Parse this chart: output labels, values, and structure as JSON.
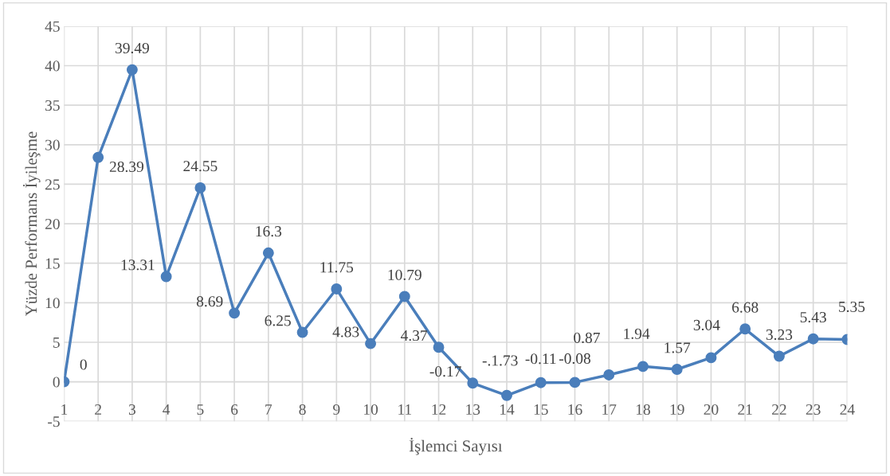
{
  "chart_data": {
    "type": "line",
    "xlabel": "İşlemci Sayısı",
    "ylabel": "Yüzde Performans İyileşme",
    "categories": [
      "1",
      "2",
      "3",
      "4",
      "5",
      "6",
      "7",
      "8",
      "9",
      "10",
      "11",
      "12",
      "13",
      "14",
      "15",
      "16",
      "17",
      "18",
      "19",
      "20",
      "21",
      "22",
      "23",
      "24"
    ],
    "series": [
      {
        "color": "#4a7ebb",
        "values": [
          0,
          28.39,
          39.49,
          13.31,
          24.55,
          8.69,
          16.3,
          6.25,
          11.75,
          4.83,
          10.79,
          4.37,
          -0.17,
          -1.73,
          -0.11,
          -0.08,
          0.87,
          1.94,
          1.57,
          3.04,
          6.68,
          3.23,
          5.43,
          5.35
        ],
        "value_labels": [
          "0",
          "28.39",
          "39.49",
          "13.31",
          "24.55",
          "8.69",
          "16.3",
          "6.25",
          "11.75",
          "4.83",
          "10.79",
          "4.37",
          "-0.17",
          "-.1.73",
          "-0.11",
          "-0.08",
          "0.87",
          "1.94",
          "1.57",
          "3.04",
          "6.68",
          "3.23",
          "5.43",
          "5.35"
        ]
      }
    ],
    "ylim": [
      -5,
      45
    ],
    "yticks": [
      -5,
      0,
      5,
      10,
      15,
      20,
      25,
      30,
      35,
      40,
      45
    ],
    "grid": true,
    "marker": "circle",
    "line_style": "solid"
  }
}
